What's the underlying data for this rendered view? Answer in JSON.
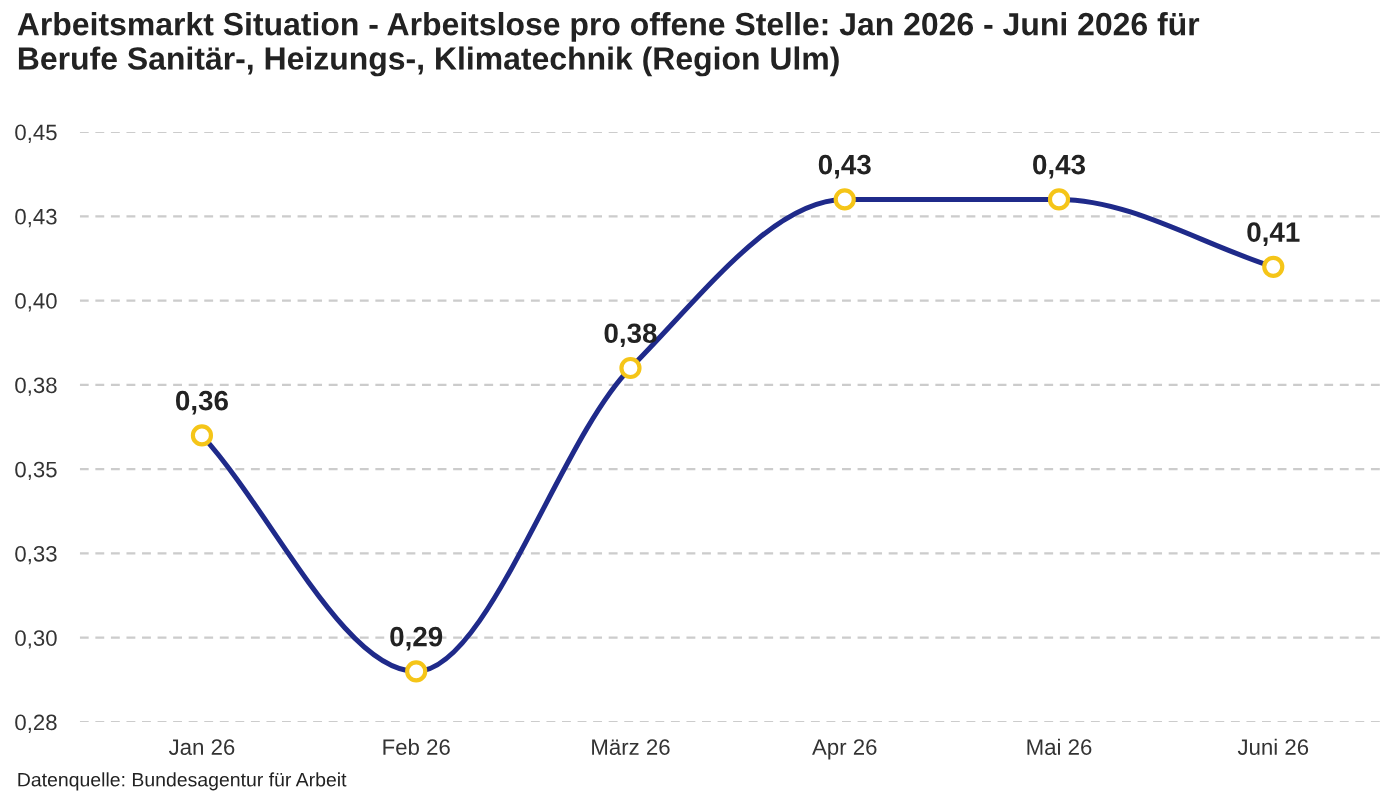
{
  "chart_data": {
    "type": "line",
    "title": "Arbeitsmarkt Situation - Arbeitslose pro offene Stelle: Jan 2026 - Juni 2026 für\nBerufe Sanitär-, Heizungs-, Klimatechnik (Region Ulm)",
    "categories": [
      "Jan 26",
      "Feb 26",
      "März 26",
      "Apr 26",
      "Mai 26",
      "Juni 26"
    ],
    "series": [
      {
        "color": "#1f2a8a",
        "colors": [
          "#f5c518",
          "#f5c518",
          "#f5c518",
          "#f5c518",
          "#f5c518",
          "#f5c518"
        ],
        "values": [
          0.36,
          0.29,
          0.38,
          0.43,
          0.43,
          0.41
        ],
        "value_labels": [
          "0,36",
          "0,29",
          "0,38",
          "0,43",
          "0,43",
          "0,41"
        ]
      }
    ],
    "ylim": [
      0.275,
      0.45
    ],
    "yticks": [
      {
        "value": 0.275,
        "label": "0,28"
      },
      {
        "value": 0.3,
        "label": "0,30"
      },
      {
        "value": 0.325,
        "label": "0,33"
      },
      {
        "value": 0.35,
        "label": "0,35"
      },
      {
        "value": 0.375,
        "label": "0,38"
      },
      {
        "value": 0.4,
        "label": "0,40"
      },
      {
        "value": 0.425,
        "label": "0,43"
      },
      {
        "value": 0.45,
        "label": "0,45"
      }
    ],
    "grid": "y",
    "marker": "circle",
    "line_style": "solid",
    "legend": false,
    "annotations": [
      "Datenquelle: Bundesagentur für Arbeit"
    ]
  }
}
